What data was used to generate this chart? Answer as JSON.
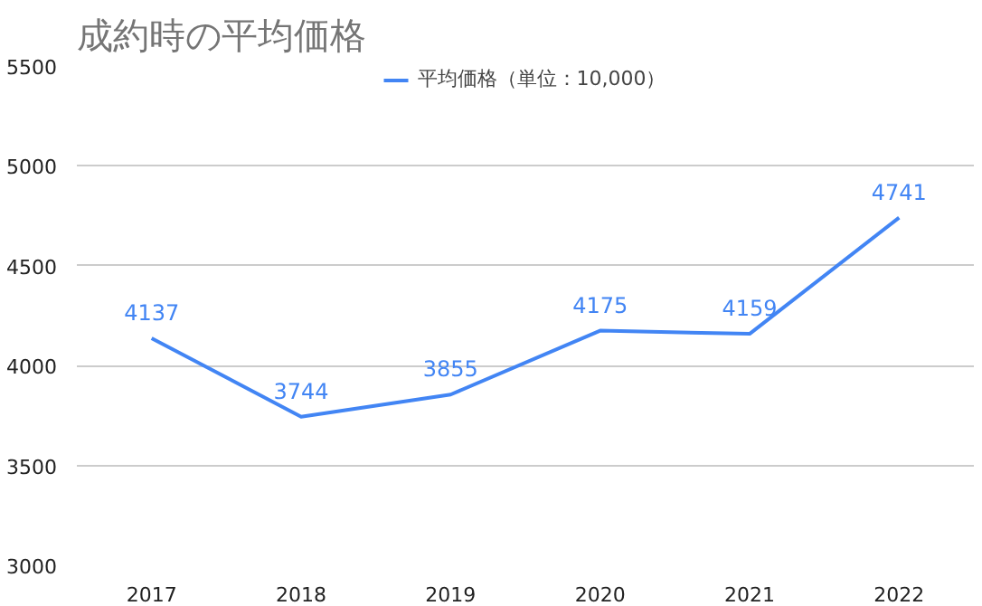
{
  "chart_data": {
    "type": "line",
    "title": "成約時の平均価格",
    "categories": [
      "2017",
      "2018",
      "2019",
      "2020",
      "2021",
      "2022"
    ],
    "series": [
      {
        "name": "平均価格（単位：10,000）",
        "color": "#4285f4",
        "values": [
          4137,
          3744,
          3855,
          4175,
          4159,
          4741
        ]
      }
    ],
    "ylim": [
      3000,
      5500
    ],
    "yticks": [
      3000,
      3500,
      4000,
      4500,
      5000,
      5500
    ],
    "grid": "y",
    "legend": "top",
    "data_labels": true,
    "marker": "none",
    "line_style": "solid"
  }
}
